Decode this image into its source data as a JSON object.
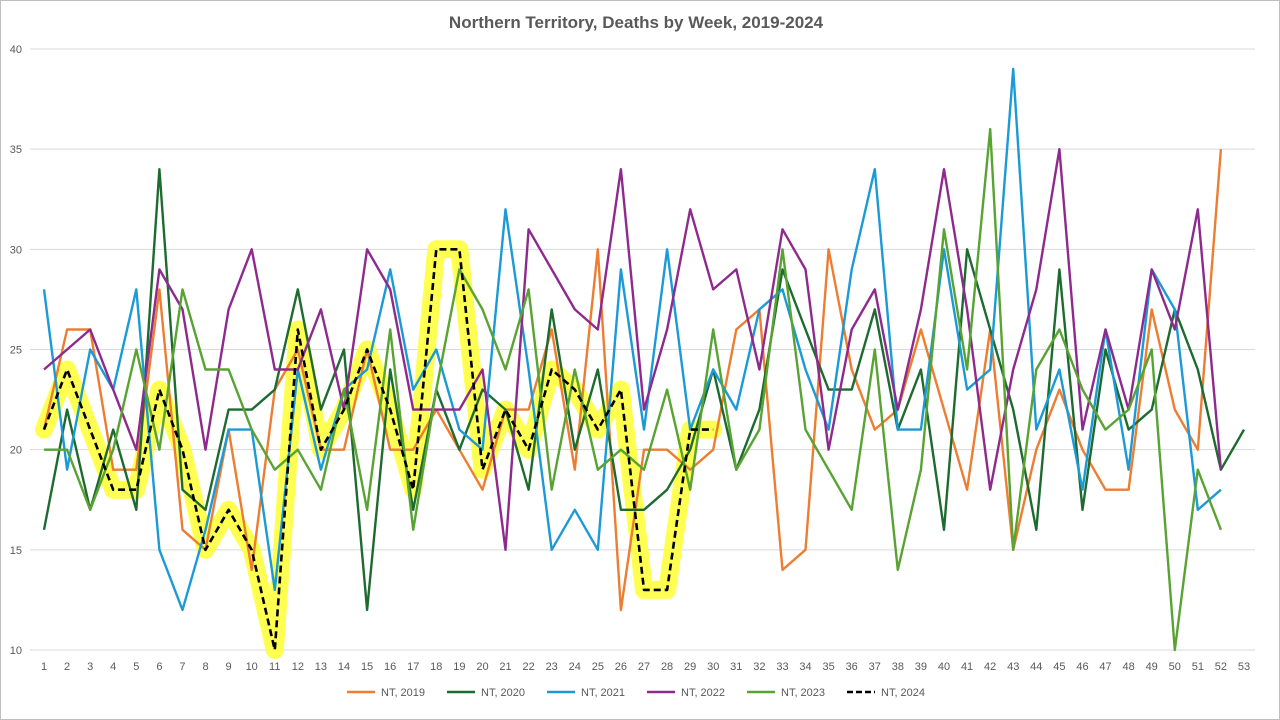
{
  "chart_data": {
    "type": "line",
    "title": "Northern Territory, Deaths by Week, 2019-2024",
    "xlabel": "",
    "ylabel": "",
    "x": [
      1,
      2,
      3,
      4,
      5,
      6,
      7,
      8,
      9,
      10,
      11,
      12,
      13,
      14,
      15,
      16,
      17,
      18,
      19,
      20,
      21,
      22,
      23,
      24,
      25,
      26,
      27,
      28,
      29,
      30,
      31,
      32,
      33,
      34,
      35,
      36,
      37,
      38,
      39,
      40,
      41,
      42,
      43,
      44,
      45,
      46,
      47,
      48,
      49,
      50,
      51,
      52,
      53
    ],
    "xlim": [
      1,
      53
    ],
    "ylim": [
      10,
      40
    ],
    "yticks": [
      10,
      15,
      20,
      25,
      30,
      35,
      40
    ],
    "grid": "horizontal",
    "legend_position": "bottom",
    "highlight_series": "NT, 2024",
    "highlight_color": "#ffff33",
    "series": [
      {
        "name": "NT, 2019",
        "color": "#ed7d31",
        "dash": "solid",
        "values": [
          21,
          26,
          26,
          19,
          19,
          28,
          16,
          15,
          21,
          14,
          23,
          25,
          20,
          20,
          25,
          20,
          20,
          22,
          20,
          18,
          22,
          22,
          26,
          19,
          30,
          12,
          20,
          20,
          19,
          20,
          26,
          27,
          14,
          15,
          30,
          24,
          21,
          22,
          26,
          22,
          18,
          26,
          15,
          20,
          23,
          20,
          18,
          18,
          27,
          22,
          20,
          35,
          null
        ]
      },
      {
        "name": "NT, 2020",
        "color": "#1e6b30",
        "dash": "solid",
        "values": [
          16,
          22,
          17,
          21,
          17,
          34,
          18,
          17,
          22,
          22,
          23,
          28,
          22,
          25,
          12,
          24,
          17,
          23,
          20,
          23,
          22,
          18,
          27,
          20,
          24,
          17,
          17,
          18,
          20,
          24,
          19,
          22,
          29,
          26,
          23,
          23,
          27,
          21,
          24,
          16,
          30,
          26,
          22,
          16,
          29,
          17,
          25,
          21,
          22,
          27,
          24,
          19,
          21
        ]
      },
      {
        "name": "NT, 2021",
        "color": "#1b9ad6",
        "dash": "solid",
        "values": [
          28,
          19,
          25,
          23,
          28,
          15,
          12,
          16,
          21,
          21,
          13,
          24,
          19,
          23,
          24,
          29,
          23,
          25,
          21,
          20,
          32,
          24,
          15,
          17,
          15,
          29,
          21,
          30,
          21,
          24,
          22,
          27,
          28,
          24,
          21,
          29,
          34,
          21,
          21,
          30,
          23,
          24,
          39,
          21,
          24,
          18,
          26,
          19,
          29,
          27,
          17,
          18,
          null
        ]
      },
      {
        "name": "NT, 2022",
        "color": "#8e2a8e",
        "dash": "solid",
        "values": [
          24,
          25,
          26,
          23,
          20,
          29,
          27,
          20,
          27,
          30,
          24,
          24,
          27,
          22,
          30,
          28,
          22,
          22,
          22,
          24,
          15,
          31,
          29,
          27,
          26,
          34,
          22,
          26,
          32,
          28,
          29,
          24,
          31,
          29,
          20,
          26,
          28,
          22,
          27,
          34,
          27,
          18,
          24,
          28,
          35,
          21,
          26,
          22,
          29,
          26,
          32,
          19,
          null
        ]
      },
      {
        "name": "NT, 2023",
        "color": "#58a332",
        "dash": "solid",
        "values": [
          20,
          20,
          17,
          20,
          25,
          20,
          28,
          24,
          24,
          21,
          19,
          20,
          18,
          23,
          17,
          26,
          16,
          23,
          29,
          27,
          24,
          28,
          18,
          24,
          19,
          20,
          19,
          23,
          18,
          26,
          19,
          21,
          30,
          21,
          19,
          17,
          25,
          14,
          19,
          31,
          24,
          36,
          15,
          24,
          26,
          23,
          21,
          22,
          25,
          10,
          19,
          16,
          null
        ]
      },
      {
        "name": "NT, 2024",
        "color": "#000000",
        "dash": "dashed",
        "values": [
          21,
          24,
          21,
          18,
          18,
          23,
          20,
          15,
          17,
          15,
          10,
          26,
          20,
          22,
          25,
          22,
          18,
          30,
          30,
          19,
          22,
          20,
          24,
          23,
          21,
          23,
          13,
          13,
          21,
          21,
          null,
          null,
          null,
          null,
          null,
          null,
          null,
          null,
          null,
          null,
          null,
          null,
          null,
          null,
          null,
          null,
          null,
          null,
          null,
          null,
          null,
          null,
          null
        ]
      }
    ]
  }
}
